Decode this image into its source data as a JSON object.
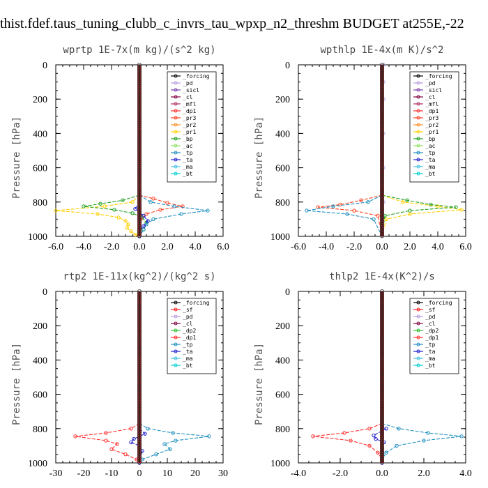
{
  "figure_title": "thist.fdef.taus_tuning_clubb_c_invrs_tau_wpxp_n2_threshm  BUDGET at255E,-22",
  "y_axis_label": "Pressure [hPa]",
  "colors": {
    "_forcing": "#000000",
    "_pd": "#b99be0",
    "_sicl": "#7b3fb0",
    "_cl": "#800040",
    "_mfl": "#b03060",
    "_dp1": "#ff3030",
    "_pr3": "#ff4020",
    "_pr2": "#ff9020",
    "_pr1": "#ffd000",
    "_bp": "#20a020",
    "_ac": "#90e060",
    "_tp": "#2090c0",
    "_ta": "#2020d0",
    "_ma": "#40c0e0",
    "_bt": "#00d0d0",
    "_sf": "#ff2020",
    "_dp2": "#30c030"
  },
  "chart_data": [
    {
      "type": "line",
      "title": "wprtp  1E-7x(m kg)/(s^2 kg)",
      "xlim": [
        -6.0,
        6.0
      ],
      "ylim": [
        1000,
        0
      ],
      "xticks": [
        "-6.0",
        "-4.0",
        "-2.0",
        "0.0",
        "2.0",
        "4.0",
        "6.0"
      ],
      "xtick_values": [
        -6,
        -4,
        -2,
        0,
        2,
        4,
        6
      ],
      "yticks": [
        "0",
        "200",
        "400",
        "600",
        "800",
        "1000"
      ],
      "ytick_values": [
        0,
        200,
        400,
        600,
        800,
        1000
      ],
      "legend_position": "top-right",
      "legend": [
        "_forcing",
        "_pd",
        "_sicl",
        "_cl",
        "_mfl",
        "_dp1",
        "_pr3",
        "_pr2",
        "_pr1",
        "_bp",
        "_ac",
        "_tp",
        "_ta",
        "_ma",
        "_bt"
      ],
      "series": [
        {
          "name": "_pr1",
          "pressure": [
            760,
            800,
            825,
            850,
            870,
            890,
            910,
            930,
            950,
            970,
            990,
            1000
          ],
          "values": [
            0,
            -0.5,
            -2.5,
            -6.0,
            -3.0,
            -1.5,
            -1.0,
            -0.8,
            -0.9,
            -0.6,
            -0.3,
            0
          ]
        },
        {
          "name": "_bp",
          "pressure": [
            760,
            790,
            810,
            825,
            845,
            865,
            890,
            920,
            960,
            1000
          ],
          "values": [
            0,
            -1.2,
            -2.8,
            -4.0,
            -1.8,
            -0.5,
            0.2,
            0.5,
            0.3,
            0
          ]
        },
        {
          "name": "_pr3",
          "pressure": [
            760,
            780,
            805,
            825,
            845,
            870,
            900,
            930,
            1000
          ],
          "values": [
            0,
            1.0,
            2.0,
            3.1,
            1.5,
            0.5,
            0.1,
            0,
            0
          ]
        },
        {
          "name": "_tp",
          "pressure": [
            760,
            800,
            825,
            850,
            870,
            900,
            930,
            960,
            1000
          ],
          "values": [
            0,
            0.8,
            2.5,
            4.9,
            3.0,
            1.0,
            0.5,
            0.3,
            0
          ]
        },
        {
          "name": "_ta",
          "pressure": [
            800,
            840,
            880,
            910,
            940,
            970,
            1000
          ],
          "values": [
            0,
            -0.3,
            0.3,
            0.6,
            0.3,
            0,
            0
          ]
        },
        {
          "name": "_forcing",
          "pressure": [
            0,
            1000
          ],
          "values": [
            0,
            0
          ],
          "dense": true
        }
      ]
    },
    {
      "type": "line",
      "title": "wpthlp  1E-4x(m K)/s^2",
      "xlim": [
        -6.0,
        6.0
      ],
      "ylim": [
        1000,
        0
      ],
      "xticks": [
        "-6.0",
        "-4.0",
        "-2.0",
        "0.0",
        "2.0",
        "4.0",
        "6.0"
      ],
      "xtick_values": [
        -6,
        -4,
        -2,
        0,
        2,
        4,
        6
      ],
      "yticks": [
        "0",
        "200",
        "400",
        "600",
        "800",
        "1000"
      ],
      "ytick_values": [
        0,
        200,
        400,
        600,
        800,
        1000
      ],
      "legend_position": "top-right",
      "legend": [
        "_forcing",
        "_pd",
        "_sicl",
        "_cl",
        "_mfl",
        "_dp1",
        "_pr3",
        "_pr2",
        "_pr1",
        "_bp",
        "_ac",
        "_tp",
        "_ta",
        "_ma",
        "_bt"
      ],
      "series": [
        {
          "name": "_pr1",
          "pressure": [
            760,
            800,
            825,
            845,
            870,
            900,
            1000
          ],
          "values": [
            0,
            1.5,
            4.0,
            5.7,
            2.0,
            0.3,
            0
          ]
        },
        {
          "name": "_bp",
          "pressure": [
            760,
            790,
            815,
            830,
            850,
            880,
            1000
          ],
          "values": [
            0,
            1.8,
            3.5,
            5.3,
            2.0,
            0.2,
            0
          ]
        },
        {
          "name": "_pr3",
          "pressure": [
            760,
            790,
            815,
            830,
            850,
            880,
            1000
          ],
          "values": [
            0,
            -1.5,
            -3.0,
            -4.6,
            -2.0,
            -0.3,
            0
          ]
        },
        {
          "name": "_tp",
          "pressure": [
            760,
            800,
            825,
            850,
            870,
            900,
            1000
          ],
          "values": [
            0,
            -1.0,
            -3.5,
            -5.4,
            -2.5,
            -0.6,
            0
          ]
        },
        {
          "name": "_pd",
          "pressure": [
            0,
            100,
            200,
            400,
            600,
            800,
            1000
          ],
          "values": [
            0.1,
            0.1,
            0.1,
            0.1,
            0.1,
            0.1,
            0
          ]
        },
        {
          "name": "_forcing",
          "pressure": [
            0,
            1000
          ],
          "values": [
            0,
            0
          ],
          "dense": true
        }
      ]
    },
    {
      "type": "line",
      "title": "rtp2  1E-11x(kg^2)/(kg^2 s)",
      "xlim": [
        -30,
        30
      ],
      "ylim": [
        1000,
        0
      ],
      "xticks": [
        "-30",
        "-20",
        "-10",
        "0",
        "10",
        "20",
        "30"
      ],
      "xtick_values": [
        -30,
        -20,
        -10,
        0,
        10,
        20,
        30
      ],
      "yticks": [
        "0",
        "200",
        "400",
        "600",
        "800",
        "1000"
      ],
      "ytick_values": [
        0,
        200,
        400,
        600,
        800,
        1000
      ],
      "legend_position": "top-right",
      "legend": [
        "_forcing",
        "_sf",
        "_pd",
        "_cl",
        "_dp2",
        "_dp1",
        "_tp",
        "_ta",
        "_ma",
        "_bt"
      ],
      "series": [
        {
          "name": "_dp1",
          "pressure": [
            770,
            800,
            825,
            845,
            870,
            890,
            920,
            950,
            980,
            1000
          ],
          "values": [
            0,
            -3,
            -12,
            -23,
            -12,
            -8,
            -10,
            -5,
            -1,
            0
          ]
        },
        {
          "name": "_tp",
          "pressure": [
            770,
            800,
            825,
            845,
            870,
            890,
            920,
            950,
            980,
            1000
          ],
          "values": [
            0,
            3,
            12,
            25,
            13,
            9,
            11,
            6,
            1,
            0
          ]
        },
        {
          "name": "_ta",
          "pressure": [
            800,
            830,
            860,
            880,
            900,
            930,
            1000
          ],
          "values": [
            0,
            2,
            -2,
            -3,
            0,
            1,
            0
          ]
        },
        {
          "name": "_forcing",
          "pressure": [
            0,
            1000
          ],
          "values": [
            0,
            0
          ],
          "dense": true
        }
      ]
    },
    {
      "type": "line",
      "title": "thlp2  1E-4x(K^2)/s",
      "xlim": [
        -4.0,
        4.0
      ],
      "ylim": [
        1000,
        0
      ],
      "xticks": [
        "-4.0",
        "-2.0",
        "0.0",
        "2.0",
        "4.0"
      ],
      "xtick_values": [
        -4,
        -2,
        0,
        2,
        4
      ],
      "yticks": [
        "0",
        "200",
        "400",
        "600",
        "800",
        "1000"
      ],
      "ytick_values": [
        0,
        200,
        400,
        600,
        800,
        1000
      ],
      "legend_position": "top-right",
      "legend": [
        "_forcing",
        "_sf",
        "_pd",
        "_cl",
        "_dp2",
        "_dp1",
        "_tp",
        "_ta",
        "_ma",
        "_bt"
      ],
      "series": [
        {
          "name": "_dp1",
          "pressure": [
            770,
            800,
            825,
            845,
            870,
            900,
            940,
            980,
            1000
          ],
          "values": [
            0,
            -0.6,
            -1.8,
            -3.3,
            -1.5,
            -0.6,
            -0.2,
            0,
            0
          ]
        },
        {
          "name": "_tp",
          "pressure": [
            770,
            800,
            825,
            845,
            870,
            900,
            940,
            980,
            1000
          ],
          "values": [
            0,
            0.8,
            2.2,
            3.8,
            2.0,
            0.7,
            0.2,
            0,
            0
          ]
        },
        {
          "name": "_ta",
          "pressure": [
            800,
            840,
            860,
            880,
            900,
            1000
          ],
          "values": [
            0.2,
            -0.4,
            -0.3,
            0.1,
            0,
            0
          ]
        },
        {
          "name": "_forcing",
          "pressure": [
            0,
            1000
          ],
          "values": [
            0,
            0
          ],
          "dense": true
        }
      ]
    }
  ]
}
